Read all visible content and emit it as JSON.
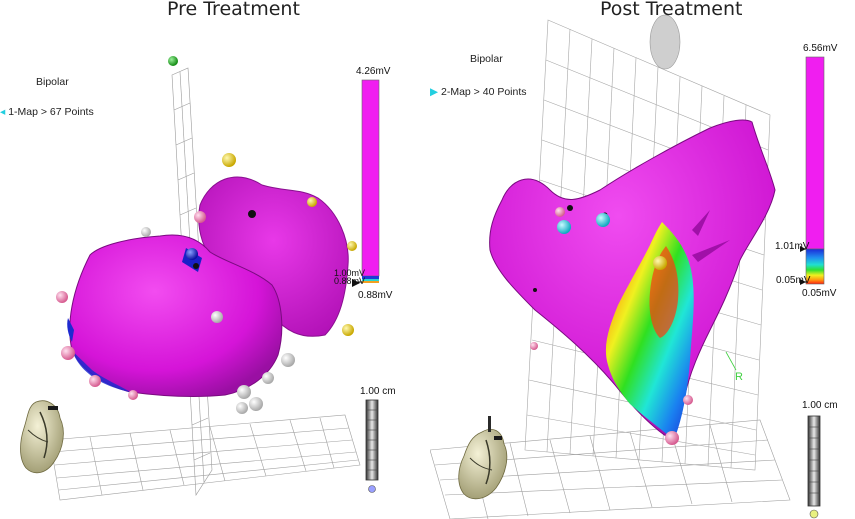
{
  "left": {
    "title": "Pre Treatment",
    "mode_label": "Bipolar",
    "map_label": "1-Map > 67 Points",
    "scale_max": "4.26mV",
    "scale_mid": "0.88mV",
    "scale_mid_overlap": "1.00mV",
    "scale_min": "0.88mV",
    "ruler_label": "1.00 cm"
  },
  "right": {
    "title": "Post Treatment",
    "mode_label": "Bipolar",
    "map_label": "2-Map > 40 Points",
    "scale_max": "6.56mV",
    "scale_mid": "1.01mV",
    "scale_low": "0.05mV",
    "scale_min": "0.05mV",
    "ruler_label": "1.00 cm",
    "axis_letter": "R"
  },
  "colors": {
    "magenta": "#e01ee0",
    "magenta_dark": "#a010a8",
    "cyan_marker": "#22cfe0",
    "yellow_marker": "#e8d020",
    "pink_marker": "#f08ab0",
    "blue_marker": "#1a20d0"
  },
  "icons": [
    "heart-model-icon",
    "map-pointer-icon"
  ]
}
